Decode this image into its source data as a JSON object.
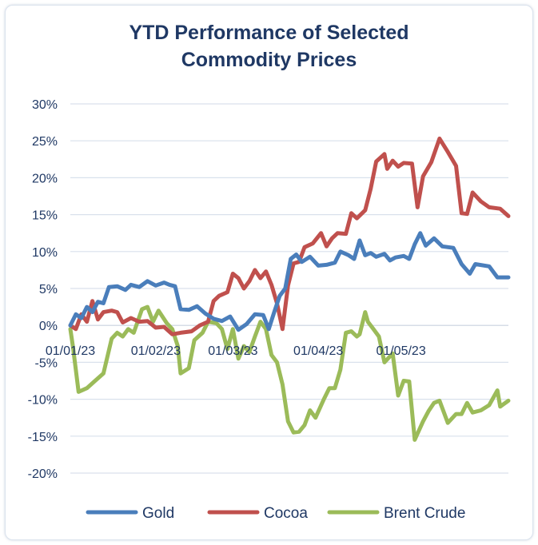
{
  "chart_data": {
    "type": "line",
    "title_lines": [
      "YTD Performance of Selected",
      "Commodity Prices"
    ],
    "xlabel": "",
    "ylabel": "",
    "ylim": [
      -20,
      30
    ],
    "yticks": [
      -20,
      -15,
      -10,
      -5,
      0,
      5,
      10,
      15,
      20,
      25,
      30
    ],
    "ytick_labels": [
      "-20%",
      "-15%",
      "-10%",
      "-5%",
      "0%",
      "5%",
      "10%",
      "15%",
      "20%",
      "25%",
      "30%"
    ],
    "x_range": [
      "2023-01-01",
      "2023-06-09"
    ],
    "xticks": [
      "2023-01-01",
      "2023-02-01",
      "2023-03-01",
      "2023-04-01",
      "2023-05-01"
    ],
    "xtick_labels": [
      "01/01/23",
      "01/02/23",
      "01/03/23",
      "01/04/23",
      "01/05/23"
    ],
    "grid": "horizontal",
    "legend_position": "bottom",
    "series": [
      {
        "name": "Gold",
        "color": "#4a7ebb",
        "points": [
          [
            "2023-01-01",
            0
          ],
          [
            "2023-01-03",
            1.5
          ],
          [
            "2023-01-05",
            1
          ],
          [
            "2023-01-07",
            2.5
          ],
          [
            "2023-01-09",
            1.8
          ],
          [
            "2023-01-11",
            3.2
          ],
          [
            "2023-01-13",
            3
          ],
          [
            "2023-01-15",
            5.2
          ],
          [
            "2023-01-18",
            5.3
          ],
          [
            "2023-01-21",
            4.8
          ],
          [
            "2023-01-23",
            5.5
          ],
          [
            "2023-01-26",
            5.2
          ],
          [
            "2023-01-29",
            6
          ],
          [
            "2023-02-01",
            5.4
          ],
          [
            "2023-02-04",
            5.8
          ],
          [
            "2023-02-06",
            5.5
          ],
          [
            "2023-02-08",
            5.3
          ],
          [
            "2023-02-10",
            2.2
          ],
          [
            "2023-02-13",
            2.1
          ],
          [
            "2023-02-16",
            2.6
          ],
          [
            "2023-02-19",
            1.6
          ],
          [
            "2023-02-22",
            0.9
          ],
          [
            "2023-02-25",
            0.6
          ],
          [
            "2023-02-28",
            1.2
          ],
          [
            "2023-03-03",
            -0.6
          ],
          [
            "2023-03-06",
            0.2
          ],
          [
            "2023-03-09",
            1.5
          ],
          [
            "2023-03-12",
            1.4
          ],
          [
            "2023-03-14",
            -0.5
          ],
          [
            "2023-03-16",
            1.8
          ],
          [
            "2023-03-18",
            4
          ],
          [
            "2023-03-20",
            5
          ],
          [
            "2023-03-22",
            9
          ],
          [
            "2023-03-24",
            9.6
          ],
          [
            "2023-03-26",
            8.6
          ],
          [
            "2023-03-29",
            9.3
          ],
          [
            "2023-04-01",
            8.1
          ],
          [
            "2023-04-04",
            8.2
          ],
          [
            "2023-04-07",
            8.5
          ],
          [
            "2023-04-09",
            10
          ],
          [
            "2023-04-12",
            9.5
          ],
          [
            "2023-04-14",
            9
          ],
          [
            "2023-04-16",
            11.5
          ],
          [
            "2023-04-18",
            9.5
          ],
          [
            "2023-04-20",
            9.8
          ],
          [
            "2023-04-22",
            9.3
          ],
          [
            "2023-04-25",
            9.7
          ],
          [
            "2023-04-27",
            8.8
          ],
          [
            "2023-04-29",
            9.2
          ],
          [
            "2023-05-02",
            9.4
          ],
          [
            "2023-05-04",
            9
          ],
          [
            "2023-05-06",
            11
          ],
          [
            "2023-05-08",
            12.5
          ],
          [
            "2023-05-10",
            10.8
          ],
          [
            "2023-05-13",
            11.8
          ],
          [
            "2023-05-16",
            10.7
          ],
          [
            "2023-05-20",
            10.5
          ],
          [
            "2023-05-23",
            8.3
          ],
          [
            "2023-05-26",
            7
          ],
          [
            "2023-05-28",
            8.3
          ],
          [
            "2023-06-02",
            8
          ],
          [
            "2023-06-05",
            6.5
          ],
          [
            "2023-06-09",
            6.5
          ]
        ]
      },
      {
        "name": "Cocoa",
        "color": "#c0504d",
        "points": [
          [
            "2023-01-01",
            0
          ],
          [
            "2023-01-03",
            -0.5
          ],
          [
            "2023-01-05",
            1.5
          ],
          [
            "2023-01-07",
            0.5
          ],
          [
            "2023-01-09",
            3.3
          ],
          [
            "2023-01-11",
            0.8
          ],
          [
            "2023-01-13",
            1.8
          ],
          [
            "2023-01-16",
            2
          ],
          [
            "2023-01-18",
            1.8
          ],
          [
            "2023-01-20",
            0.4
          ],
          [
            "2023-01-23",
            1
          ],
          [
            "2023-01-26",
            0.5
          ],
          [
            "2023-01-29",
            0.6
          ],
          [
            "2023-02-01",
            -0.3
          ],
          [
            "2023-02-04",
            -0.2
          ],
          [
            "2023-02-07",
            -1.2
          ],
          [
            "2023-02-10",
            -1
          ],
          [
            "2023-02-14",
            -0.8
          ],
          [
            "2023-02-17",
            0
          ],
          [
            "2023-02-20",
            0.5
          ],
          [
            "2023-02-22",
            3.3
          ],
          [
            "2023-02-24",
            4
          ],
          [
            "2023-02-27",
            4.5
          ],
          [
            "2023-03-01",
            7
          ],
          [
            "2023-03-03",
            6.4
          ],
          [
            "2023-03-05",
            5
          ],
          [
            "2023-03-07",
            6
          ],
          [
            "2023-03-09",
            7.5
          ],
          [
            "2023-03-11",
            6.4
          ],
          [
            "2023-03-13",
            7.3
          ],
          [
            "2023-03-15",
            5.5
          ],
          [
            "2023-03-17",
            3
          ],
          [
            "2023-03-19",
            -0.5
          ],
          [
            "2023-03-21",
            5.4
          ],
          [
            "2023-03-23",
            8.4
          ],
          [
            "2023-03-25",
            8.6
          ],
          [
            "2023-03-27",
            10.6
          ],
          [
            "2023-03-30",
            11.1
          ],
          [
            "2023-04-02",
            12.5
          ],
          [
            "2023-04-04",
            10.7
          ],
          [
            "2023-04-06",
            11.8
          ],
          [
            "2023-04-08",
            12.5
          ],
          [
            "2023-04-11",
            12.4
          ],
          [
            "2023-04-13",
            15.2
          ],
          [
            "2023-04-15",
            14.5
          ],
          [
            "2023-04-18",
            15.6
          ],
          [
            "2023-04-20",
            18.5
          ],
          [
            "2023-04-22",
            22.2
          ],
          [
            "2023-04-25",
            23.2
          ],
          [
            "2023-04-26",
            21.2
          ],
          [
            "2023-04-28",
            22.3
          ],
          [
            "2023-04-30",
            21.5
          ],
          [
            "2023-05-02",
            22
          ],
          [
            "2023-05-05",
            21.9
          ],
          [
            "2023-05-07",
            16
          ],
          [
            "2023-05-09",
            20.2
          ],
          [
            "2023-05-12",
            22.1
          ],
          [
            "2023-05-15",
            25.3
          ],
          [
            "2023-05-18",
            23.5
          ],
          [
            "2023-05-21",
            21.6
          ],
          [
            "2023-05-23",
            15.2
          ],
          [
            "2023-05-25",
            15.1
          ],
          [
            "2023-05-27",
            18
          ],
          [
            "2023-05-30",
            16.8
          ],
          [
            "2023-06-02",
            16
          ],
          [
            "2023-06-06",
            15.8
          ],
          [
            "2023-06-09",
            14.8
          ]
        ]
      },
      {
        "name": "Brent Crude",
        "color": "#9bbb59",
        "points": [
          [
            "2023-01-01",
            -0.5
          ],
          [
            "2023-01-02",
            -3
          ],
          [
            "2023-01-04",
            -9
          ],
          [
            "2023-01-07",
            -8.5
          ],
          [
            "2023-01-10",
            -7.5
          ],
          [
            "2023-01-13",
            -6.5
          ],
          [
            "2023-01-16",
            -1.8
          ],
          [
            "2023-01-18",
            -1
          ],
          [
            "2023-01-20",
            -1.5
          ],
          [
            "2023-01-22",
            -0.5
          ],
          [
            "2023-01-24",
            -1
          ],
          [
            "2023-01-27",
            2.2
          ],
          [
            "2023-01-29",
            2.5
          ],
          [
            "2023-01-31",
            0.5
          ],
          [
            "2023-02-02",
            2
          ],
          [
            "2023-02-05",
            0.3
          ],
          [
            "2023-02-07",
            -0.5
          ],
          [
            "2023-02-09",
            -2.8
          ],
          [
            "2023-02-10",
            -6.5
          ],
          [
            "2023-02-13",
            -5.8
          ],
          [
            "2023-02-15",
            -2
          ],
          [
            "2023-02-18",
            -1
          ],
          [
            "2023-02-20",
            0.5
          ],
          [
            "2023-02-23",
            0.3
          ],
          [
            "2023-02-25",
            -0.5
          ],
          [
            "2023-02-27",
            -3.2
          ],
          [
            "2023-03-01",
            -0.5
          ],
          [
            "2023-03-03",
            -4.5
          ],
          [
            "2023-03-05",
            -2.8
          ],
          [
            "2023-03-07",
            -3.6
          ],
          [
            "2023-03-09",
            -1.5
          ],
          [
            "2023-03-11",
            0.5
          ],
          [
            "2023-03-13",
            -0.5
          ],
          [
            "2023-03-15",
            -4
          ],
          [
            "2023-03-17",
            -5
          ],
          [
            "2023-03-19",
            -8
          ],
          [
            "2023-03-21",
            -13
          ],
          [
            "2023-03-23",
            -14.5
          ],
          [
            "2023-03-25",
            -14.4
          ],
          [
            "2023-03-27",
            -13.5
          ],
          [
            "2023-03-29",
            -11.5
          ],
          [
            "2023-03-31",
            -12.5
          ],
          [
            "2023-04-03",
            -10
          ],
          [
            "2023-04-05",
            -8.5
          ],
          [
            "2023-04-07",
            -8.5
          ],
          [
            "2023-04-09",
            -6
          ],
          [
            "2023-04-11",
            -1
          ],
          [
            "2023-04-13",
            -0.8
          ],
          [
            "2023-04-15",
            -1.5
          ],
          [
            "2023-04-16",
            -1.2
          ],
          [
            "2023-04-18",
            1.8
          ],
          [
            "2023-04-19",
            0.5
          ],
          [
            "2023-04-21",
            -0.5
          ],
          [
            "2023-04-23",
            -1.5
          ],
          [
            "2023-04-25",
            -5
          ],
          [
            "2023-04-28",
            -3.8
          ],
          [
            "2023-04-30",
            -9.5
          ],
          [
            "2023-05-02",
            -7.5
          ],
          [
            "2023-05-04",
            -7.6
          ],
          [
            "2023-05-06",
            -15.5
          ],
          [
            "2023-05-09",
            -13
          ],
          [
            "2023-05-11",
            -11.6
          ],
          [
            "2023-05-13",
            -10.5
          ],
          [
            "2023-05-15",
            -10.2
          ],
          [
            "2023-05-18",
            -13.2
          ],
          [
            "2023-05-21",
            -12
          ],
          [
            "2023-05-23",
            -12
          ],
          [
            "2023-05-25",
            -10.5
          ],
          [
            "2023-05-27",
            -11.8
          ],
          [
            "2023-05-30",
            -11.5
          ],
          [
            "2023-06-02",
            -10.8
          ],
          [
            "2023-06-05",
            -8.8
          ],
          [
            "2023-06-06",
            -11
          ],
          [
            "2023-06-09",
            -10.2
          ]
        ]
      }
    ]
  }
}
